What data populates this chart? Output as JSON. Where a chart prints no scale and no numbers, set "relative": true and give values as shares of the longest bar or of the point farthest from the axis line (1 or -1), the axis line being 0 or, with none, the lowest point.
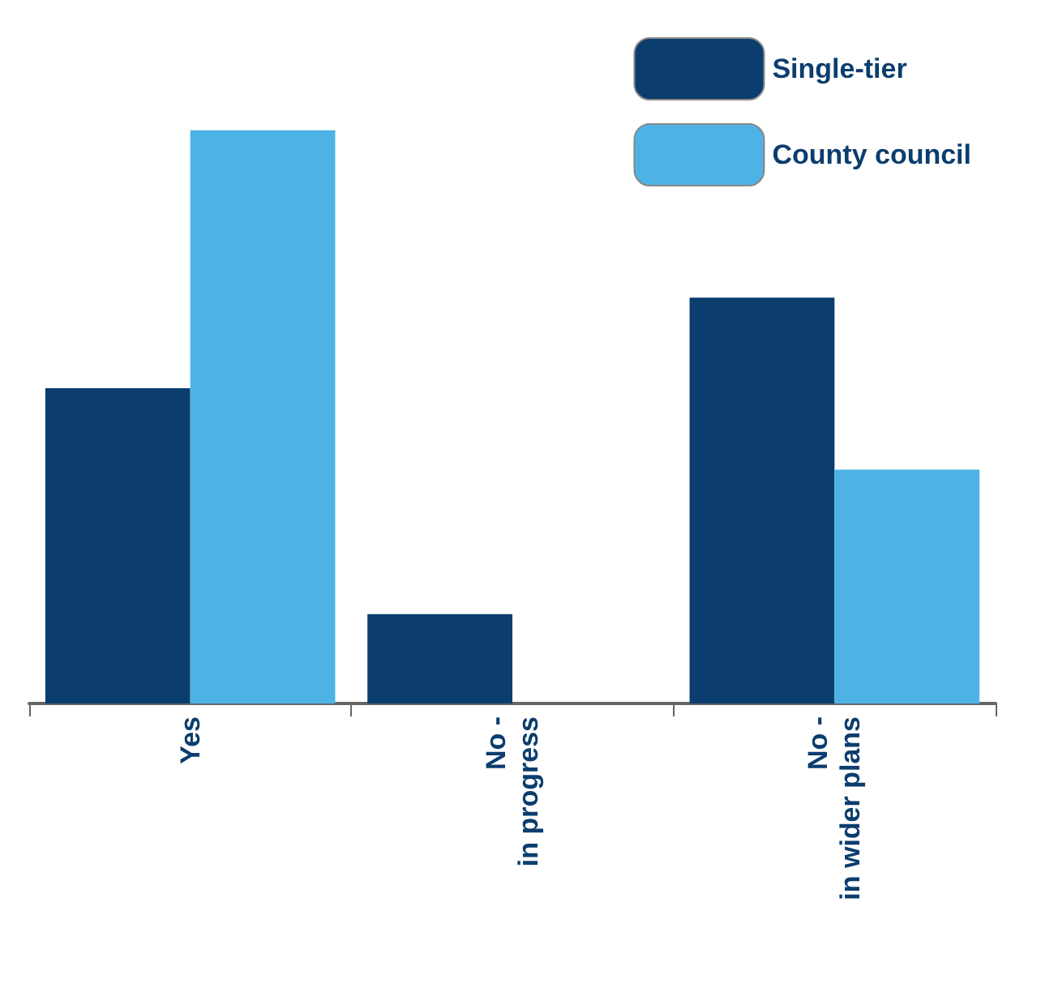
{
  "chart_data": {
    "type": "bar",
    "relative": true,
    "categories": [
      "Yes",
      "No -\nin progress",
      "No -\nin wider plans"
    ],
    "series": [
      {
        "name": "Single-tier",
        "color": "#0b3d6e",
        "values": [
          0.55,
          0.156,
          0.708
        ]
      },
      {
        "name": "County council",
        "color": "#4db3e6",
        "values": [
          1,
          0,
          0.408
        ]
      }
    ],
    "legend": "top right"
  }
}
